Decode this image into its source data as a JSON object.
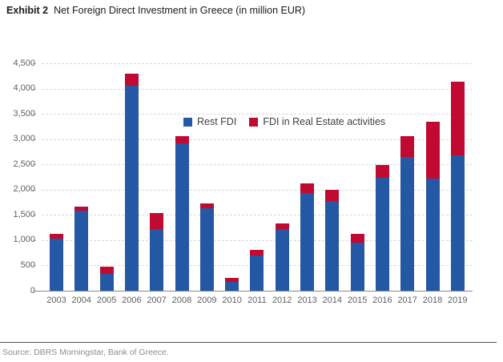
{
  "title": {
    "prefix": "Exhibit 2",
    "text": "Net Foreign Direct Investment in Greece (in million EUR)"
  },
  "source": "Source: DBRS Morningstar, Bank of Greece.",
  "colors": {
    "rest_fdi": "#2457A4",
    "real_estate": "#C00A31",
    "gridline": "#d9d9d9",
    "axis": "#8c8c8c",
    "tick_text": "#5f5f5f"
  },
  "chart_data": {
    "type": "bar",
    "stacked": true,
    "title": "Net Foreign Direct Investment in Greece (in million EUR)",
    "xlabel": "",
    "ylabel": "",
    "ylim": [
      0,
      4500
    ],
    "grid": "dashed-horizontal",
    "legend_position": "top-center-inside",
    "categories": [
      "2003",
      "2004",
      "2005",
      "2006",
      "2007",
      "2008",
      "2009",
      "2010",
      "2011",
      "2012",
      "2013",
      "2014",
      "2015",
      "2016",
      "2017",
      "2018",
      "2019"
    ],
    "series": [
      {
        "name": "Rest FDI",
        "color": "#2457A4",
        "values": [
          1030,
          1590,
          330,
          4050,
          1220,
          2920,
          1630,
          170,
          700,
          1220,
          1940,
          1780,
          950,
          2240,
          2650,
          2220,
          2670
        ]
      },
      {
        "name": "FDI in Real Estate activities",
        "color": "#C00A31",
        "values": [
          100,
          80,
          150,
          240,
          310,
          140,
          100,
          90,
          110,
          110,
          190,
          220,
          180,
          240,
          410,
          1130,
          1460
        ]
      }
    ],
    "totals": [
      1130,
      1670,
      480,
      4290,
      1530,
      3060,
      1730,
      260,
      810,
      1330,
      2130,
      2000,
      1130,
      2480,
      3060,
      3350,
      4130
    ],
    "yticks": [
      {
        "value": 0,
        "label": "0"
      },
      {
        "value": 500,
        "label": "500"
      },
      {
        "value": 1000,
        "label": "1,000"
      },
      {
        "value": 1500,
        "label": "1,500"
      },
      {
        "value": 2000,
        "label": "2,000"
      },
      {
        "value": 2500,
        "label": "2,500"
      },
      {
        "value": 3000,
        "label": "3,000"
      },
      {
        "value": 3500,
        "label": "3,500"
      },
      {
        "value": 4000,
        "label": "4,000"
      },
      {
        "value": 4500,
        "label": "4,500"
      }
    ]
  }
}
